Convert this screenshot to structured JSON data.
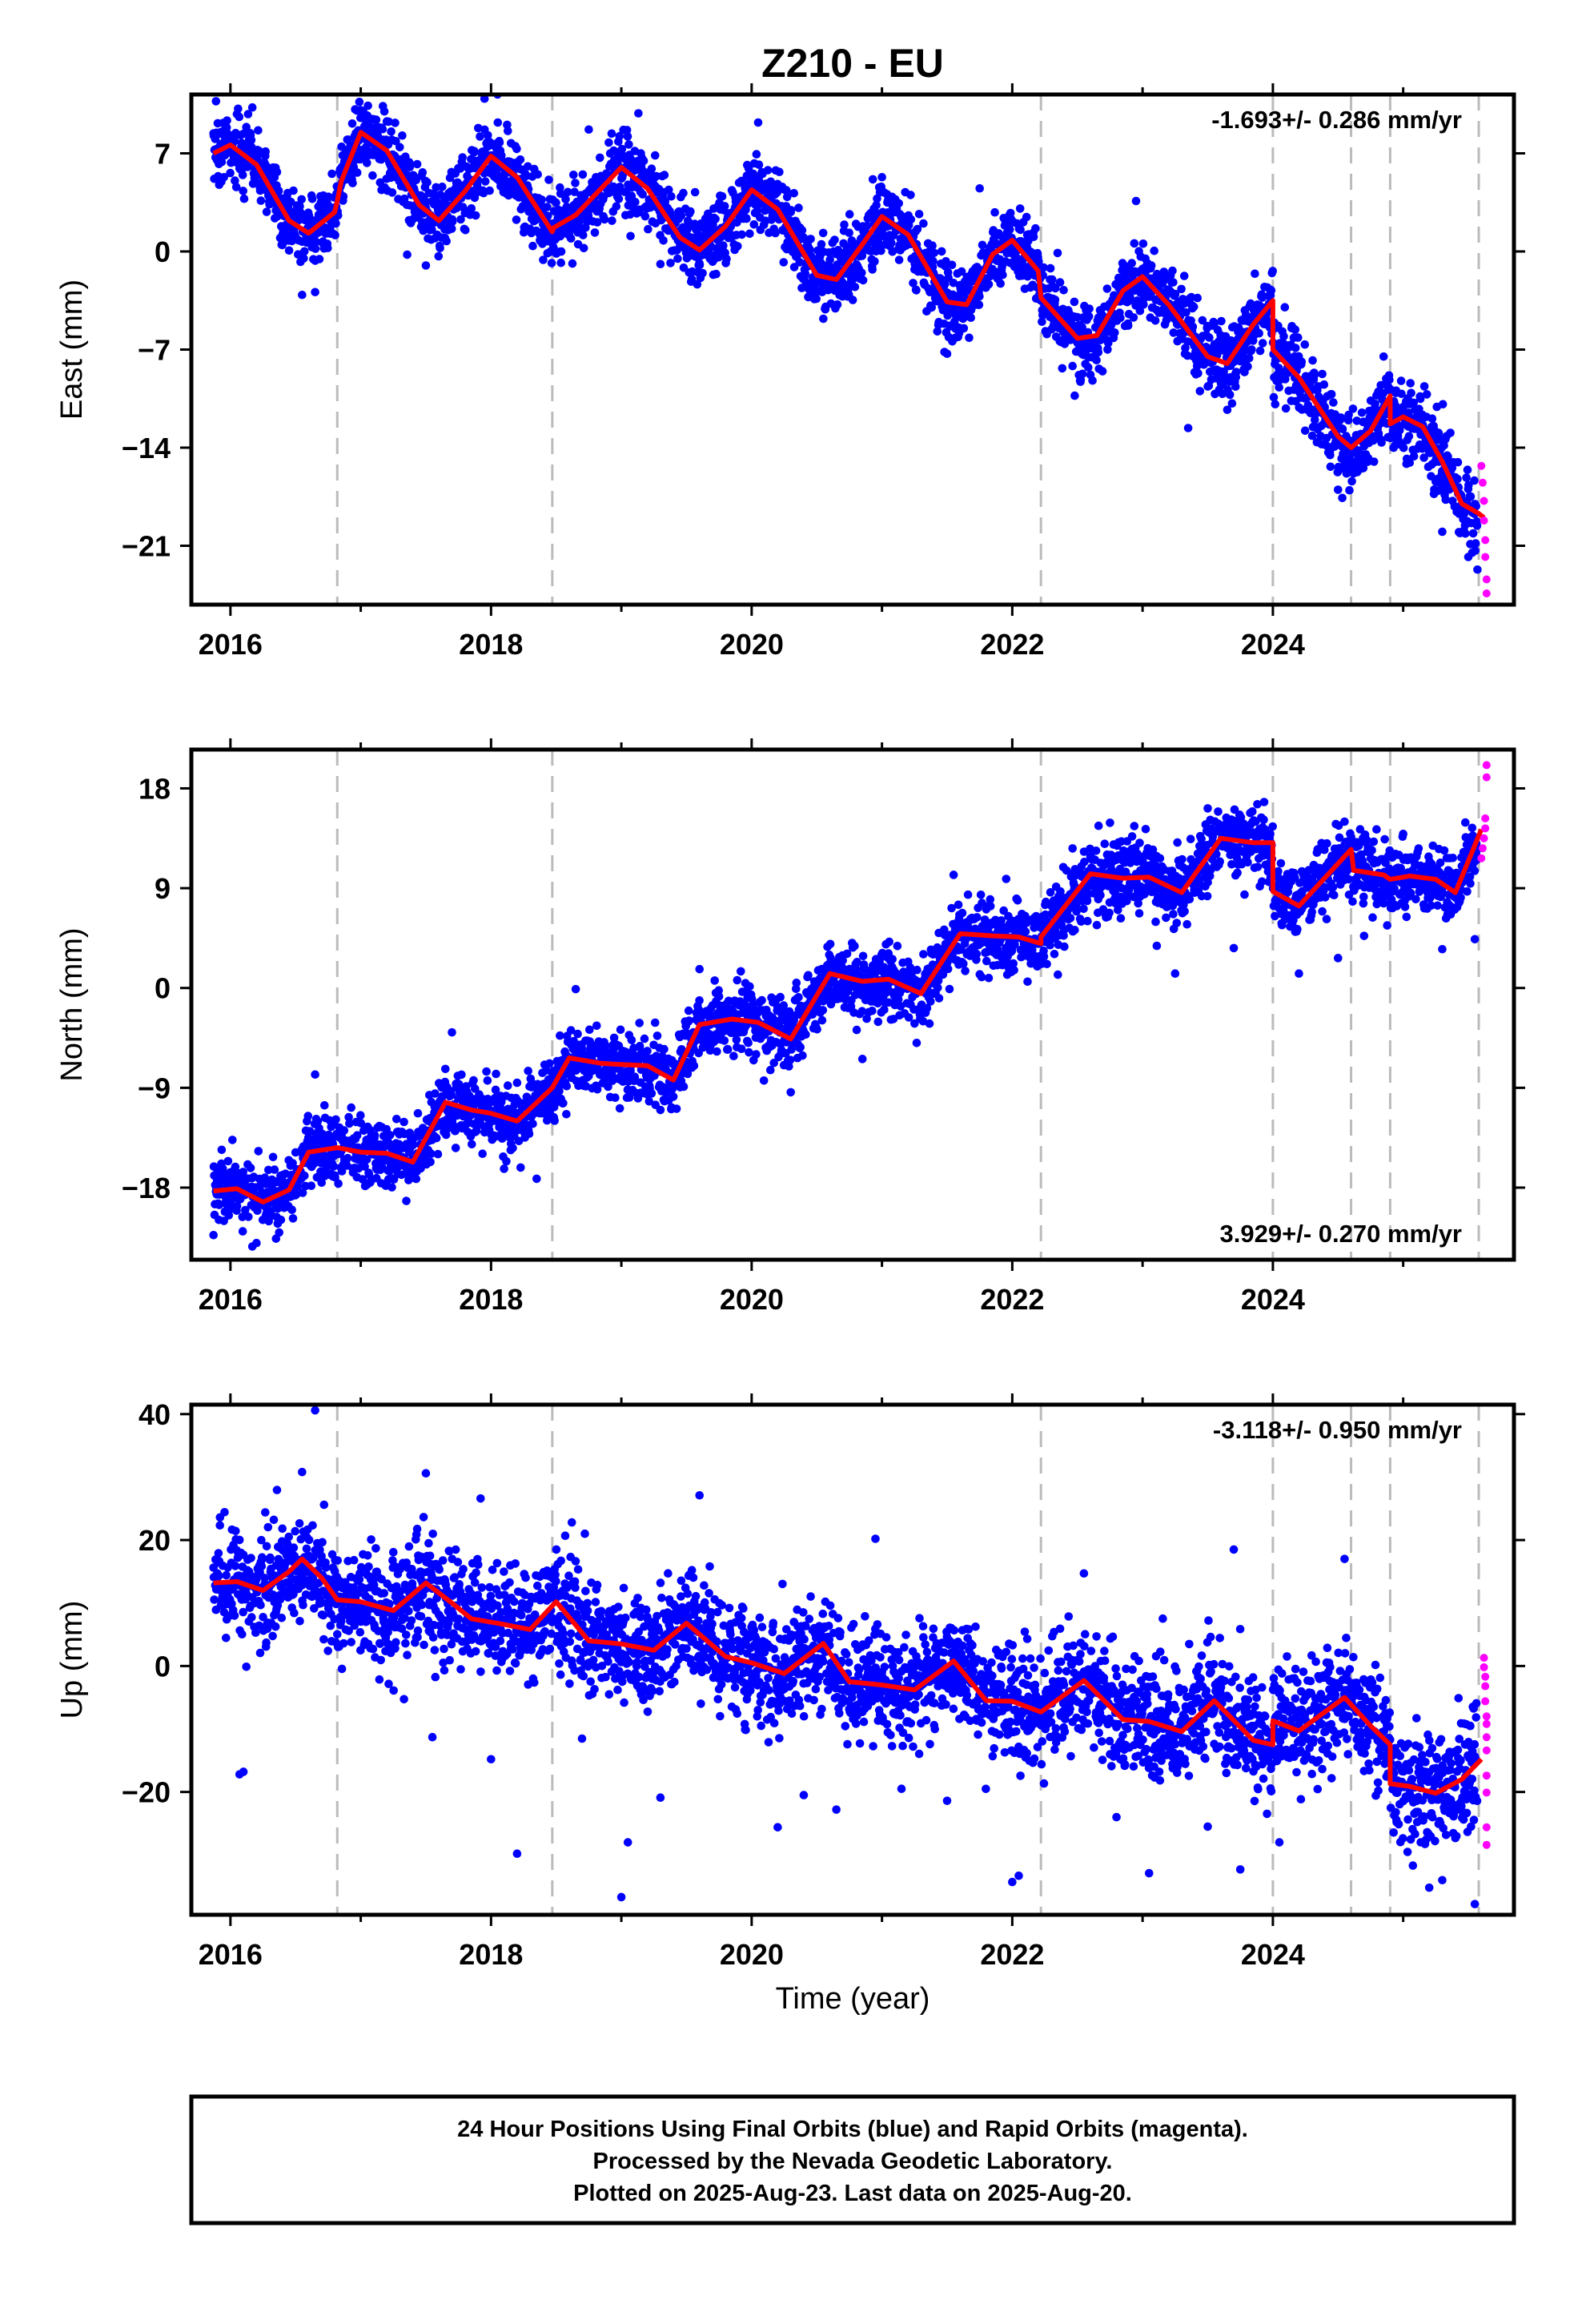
{
  "chart_data": {
    "title": "Z210 - EU",
    "type": "scatter",
    "xlabel": "Time (year)",
    "xlim": [
      2015.7,
      2025.85
    ],
    "x_ticks": [
      2016,
      2018,
      2020,
      2022,
      2024
    ],
    "x_tick_labels": [
      "2016",
      "2018",
      "2020",
      "2022",
      "2024"
    ],
    "colors": {
      "final_orbits": "#0000ff",
      "rapid_orbits": "#ff00ff",
      "model": "#ff0000",
      "offsets": "#bbbbbb",
      "frame": "#000000"
    },
    "offset_epochs": [
      2016.82,
      2018.47,
      2022.22,
      2024.0,
      2024.6,
      2024.9,
      2025.58
    ],
    "data_start": 2015.87,
    "last_final_epoch": 2025.57,
    "last_data_epoch": 2025.64,
    "panels": [
      {
        "id": "east",
        "ylabel": "East (mm)",
        "ylim": [
          -25.2,
          11.2
        ],
        "y_ticks": [
          7,
          0,
          -7,
          -14,
          -21
        ],
        "y_tick_labels": [
          "7",
          "0",
          "−7",
          "−14",
          "−21"
        ],
        "rate": "-1.693+/- 0.286 mm/yr",
        "rate_position": "top-right",
        "noise_sd": 1.3,
        "model_points": [
          [
            2015.87,
            7.0
          ],
          [
            2016.0,
            7.6
          ],
          [
            2016.2,
            6.2
          ],
          [
            2016.45,
            2.2
          ],
          [
            2016.6,
            1.3
          ],
          [
            2016.8,
            2.8
          ],
          [
            2016.82,
            3.6
          ],
          [
            2016.85,
            5.0
          ],
          [
            2017.0,
            8.5
          ],
          [
            2017.2,
            7.2
          ],
          [
            2017.45,
            3.3
          ],
          [
            2017.6,
            2.2
          ],
          [
            2017.8,
            4.3
          ],
          [
            2018.0,
            6.8
          ],
          [
            2018.2,
            5.3
          ],
          [
            2018.47,
            1.4
          ],
          [
            2018.48,
            1.7
          ],
          [
            2018.65,
            2.6
          ],
          [
            2019.0,
            6.0
          ],
          [
            2019.2,
            4.5
          ],
          [
            2019.45,
            1.0
          ],
          [
            2019.6,
            0.1
          ],
          [
            2019.8,
            1.8
          ],
          [
            2020.0,
            4.4
          ],
          [
            2020.2,
            3.0
          ],
          [
            2020.5,
            -1.7
          ],
          [
            2020.65,
            -2.0
          ],
          [
            2020.85,
            0.5
          ],
          [
            2021.0,
            2.5
          ],
          [
            2021.2,
            1.2
          ],
          [
            2021.5,
            -3.6
          ],
          [
            2021.65,
            -3.8
          ],
          [
            2021.85,
            -0.2
          ],
          [
            2022.0,
            0.8
          ],
          [
            2022.2,
            -1.4
          ],
          [
            2022.22,
            -3.3
          ],
          [
            2022.5,
            -6.2
          ],
          [
            2022.65,
            -6.0
          ],
          [
            2022.85,
            -2.8
          ],
          [
            2023.0,
            -1.8
          ],
          [
            2023.2,
            -3.8
          ],
          [
            2023.5,
            -7.5
          ],
          [
            2023.65,
            -8.0
          ],
          [
            2023.85,
            -5.2
          ],
          [
            2024.0,
            -3.5
          ],
          [
            2024.0,
            -7.0
          ],
          [
            2024.2,
            -9.0
          ],
          [
            2024.5,
            -13.2
          ],
          [
            2024.6,
            -14.0
          ],
          [
            2024.75,
            -12.8
          ],
          [
            2024.9,
            -10.3
          ],
          [
            2024.9,
            -12.3
          ],
          [
            2025.0,
            -11.8
          ],
          [
            2025.15,
            -12.5
          ],
          [
            2025.3,
            -15.0
          ],
          [
            2025.45,
            -18.0
          ],
          [
            2025.58,
            -18.7
          ],
          [
            2025.62,
            -19.0
          ]
        ],
        "final_points": [
          [
            2015.95,
            5.3
          ],
          [
            2016.05,
            9.8
          ],
          [
            2016.55,
            -3.1
          ],
          [
            2016.65,
            -2.9
          ],
          [
            2017.05,
            9.7
          ],
          [
            2017.5,
            -1.0
          ],
          [
            2017.95,
            10.9
          ],
          [
            2018.05,
            11.2
          ],
          [
            2018.4,
            -0.6
          ],
          [
            2018.75,
            8.7
          ],
          [
            2019.3,
            -0.9
          ],
          [
            2020.05,
            9.2
          ],
          [
            2020.55,
            -4.8
          ],
          [
            2021.0,
            5.3
          ],
          [
            2021.5,
            -7.3
          ],
          [
            2021.75,
            4.5
          ],
          [
            2022.6,
            -8.8
          ],
          [
            2022.95,
            3.6
          ],
          [
            2023.35,
            -12.6
          ],
          [
            2023.65,
            -11.3
          ],
          [
            2024.1,
            -11.2
          ],
          [
            2024.5,
            -17.0
          ],
          [
            2024.85,
            -7.5
          ],
          [
            2025.3,
            -20.0
          ],
          [
            2025.5,
            -21.8
          ],
          [
            2025.57,
            -22.7
          ]
        ],
        "rapid_points": [
          [
            2025.6,
            -15.3
          ],
          [
            2025.61,
            -16.5
          ],
          [
            2025.62,
            -17.8
          ],
          [
            2025.62,
            -19.2
          ],
          [
            2025.63,
            -20.6
          ],
          [
            2025.63,
            -21.8
          ],
          [
            2025.64,
            -23.4
          ],
          [
            2025.64,
            -24.4
          ]
        ]
      },
      {
        "id": "north",
        "ylabel": "North (mm)",
        "ylim": [
          -24.5,
          21.5
        ],
        "y_ticks": [
          18,
          9,
          0,
          -9,
          -18
        ],
        "y_tick_labels": [
          "18",
          "9",
          "0",
          "−9",
          "−18"
        ],
        "rate": "3.929+/- 0.270 mm/yr",
        "rate_position": "bottom-right",
        "noise_sd": 1.5,
        "model_points": [
          [
            2015.87,
            -18.3
          ],
          [
            2016.05,
            -18.1
          ],
          [
            2016.25,
            -19.3
          ],
          [
            2016.45,
            -18.2
          ],
          [
            2016.6,
            -14.8
          ],
          [
            2016.82,
            -14.4
          ],
          [
            2017.0,
            -14.8
          ],
          [
            2017.2,
            -14.9
          ],
          [
            2017.4,
            -15.7
          ],
          [
            2017.65,
            -10.3
          ],
          [
            2017.85,
            -11.0
          ],
          [
            2018.0,
            -11.3
          ],
          [
            2018.2,
            -12.0
          ],
          [
            2018.47,
            -9.0
          ],
          [
            2018.6,
            -6.3
          ],
          [
            2018.85,
            -6.8
          ],
          [
            2019.0,
            -6.9
          ],
          [
            2019.2,
            -7.0
          ],
          [
            2019.4,
            -8.3
          ],
          [
            2019.6,
            -3.3
          ],
          [
            2019.85,
            -2.8
          ],
          [
            2020.05,
            -3.1
          ],
          [
            2020.3,
            -4.6
          ],
          [
            2020.6,
            1.3
          ],
          [
            2020.85,
            0.6
          ],
          [
            2021.05,
            0.8
          ],
          [
            2021.3,
            -0.5
          ],
          [
            2021.6,
            4.9
          ],
          [
            2021.85,
            4.7
          ],
          [
            2022.05,
            4.6
          ],
          [
            2022.22,
            4.0
          ],
          [
            2022.22,
            4.6
          ],
          [
            2022.6,
            10.3
          ],
          [
            2022.85,
            9.9
          ],
          [
            2023.05,
            10.0
          ],
          [
            2023.3,
            8.6
          ],
          [
            2023.6,
            13.5
          ],
          [
            2023.85,
            13.1
          ],
          [
            2024.0,
            13.1
          ],
          [
            2024.0,
            8.7
          ],
          [
            2024.2,
            7.4
          ],
          [
            2024.6,
            12.5
          ],
          [
            2024.62,
            10.6
          ],
          [
            2024.85,
            10.2
          ],
          [
            2024.9,
            9.8
          ],
          [
            2025.05,
            10.1
          ],
          [
            2025.25,
            9.8
          ],
          [
            2025.4,
            8.6
          ],
          [
            2025.6,
            14.3
          ]
        ],
        "final_points": [
          [
            2015.95,
            -21.0
          ],
          [
            2016.2,
            -23.0
          ],
          [
            2016.35,
            -22.6
          ],
          [
            2016.65,
            -7.8
          ],
          [
            2017.35,
            -19.2
          ],
          [
            2017.7,
            -4.0
          ],
          [
            2018.1,
            -16.3
          ],
          [
            2018.35,
            -17.2
          ],
          [
            2018.65,
            -0.1
          ],
          [
            2019.3,
            -11.0
          ],
          [
            2019.6,
            1.7
          ],
          [
            2020.3,
            -9.4
          ],
          [
            2020.85,
            -6.4
          ],
          [
            2021.25,
            -3.2
          ],
          [
            2021.55,
            10.2
          ],
          [
            2022.35,
            1.2
          ],
          [
            2022.75,
            14.9
          ],
          [
            2023.25,
            1.3
          ],
          [
            2023.5,
            16.2
          ],
          [
            2023.7,
            3.6
          ],
          [
            2024.2,
            1.3
          ],
          [
            2024.5,
            2.7
          ],
          [
            2024.55,
            15.0
          ],
          [
            2024.7,
            4.7
          ],
          [
            2025.0,
            13.9
          ],
          [
            2025.3,
            3.5
          ],
          [
            2025.55,
            4.4
          ]
        ],
        "rapid_points": [
          [
            2025.6,
            11.7
          ],
          [
            2025.61,
            12.6
          ],
          [
            2025.62,
            13.5
          ],
          [
            2025.63,
            14.4
          ],
          [
            2025.63,
            15.3
          ],
          [
            2025.64,
            19.0
          ],
          [
            2025.64,
            20.1
          ]
        ]
      },
      {
        "id": "up",
        "ylabel": "Up (mm)",
        "ylim": [
          -39.5,
          41.5
        ],
        "y_ticks": [
          40,
          20,
          0,
          -20
        ],
        "y_tick_labels": [
          "40",
          "20",
          "0",
          "−20"
        ],
        "rate": "-3.118+/- 0.950 mm/yr",
        "rate_position": "top-right",
        "noise_sd": 4.4,
        "model_points": [
          [
            2015.87,
            13.2
          ],
          [
            2016.05,
            13.4
          ],
          [
            2016.25,
            12.0
          ],
          [
            2016.45,
            15.0
          ],
          [
            2016.55,
            17.0
          ],
          [
            2016.7,
            14.0
          ],
          [
            2016.82,
            10.5
          ],
          [
            2017.0,
            10.2
          ],
          [
            2017.25,
            8.8
          ],
          [
            2017.5,
            13.2
          ],
          [
            2017.7,
            10.0
          ],
          [
            2017.85,
            7.5
          ],
          [
            2018.05,
            6.8
          ],
          [
            2018.3,
            5.8
          ],
          [
            2018.5,
            10.2
          ],
          [
            2018.75,
            4.0
          ],
          [
            2019.0,
            3.5
          ],
          [
            2019.25,
            2.5
          ],
          [
            2019.5,
            6.8
          ],
          [
            2019.8,
            1.5
          ],
          [
            2020.0,
            0.5
          ],
          [
            2020.25,
            -1.2
          ],
          [
            2020.55,
            3.6
          ],
          [
            2020.75,
            -2.5
          ],
          [
            2021.0,
            -3.0
          ],
          [
            2021.25,
            -3.8
          ],
          [
            2021.55,
            0.8
          ],
          [
            2021.8,
            -5.5
          ],
          [
            2022.0,
            -5.6
          ],
          [
            2022.22,
            -7.3
          ],
          [
            2022.55,
            -2.3
          ],
          [
            2022.85,
            -8.5
          ],
          [
            2023.05,
            -8.8
          ],
          [
            2023.3,
            -10.4
          ],
          [
            2023.55,
            -5.5
          ],
          [
            2023.85,
            -11.8
          ],
          [
            2024.0,
            -12.5
          ],
          [
            2024.0,
            -8.7
          ],
          [
            2024.2,
            -10.3
          ],
          [
            2024.55,
            -5.0
          ],
          [
            2024.75,
            -9.5
          ],
          [
            2024.9,
            -12.5
          ],
          [
            2024.9,
            -18.7
          ],
          [
            2025.05,
            -19.1
          ],
          [
            2025.25,
            -20.2
          ],
          [
            2025.45,
            -18.0
          ],
          [
            2025.6,
            -14.8
          ]
        ],
        "final_points": [
          [
            2015.92,
            23.6
          ],
          [
            2016.07,
            -17.2
          ],
          [
            2016.1,
            -16.8
          ],
          [
            2016.55,
            30.8
          ],
          [
            2016.65,
            40.6
          ],
          [
            2017.5,
            30.6
          ],
          [
            2017.55,
            -11.3
          ],
          [
            2017.92,
            26.6
          ],
          [
            2018.0,
            -14.8
          ],
          [
            2018.2,
            -29.8
          ],
          [
            2018.62,
            22.8
          ],
          [
            2018.72,
            21.0
          ],
          [
            2019.0,
            -36.7
          ],
          [
            2019.05,
            -28.0
          ],
          [
            2019.3,
            -20.9
          ],
          [
            2019.6,
            27.1
          ],
          [
            2019.95,
            -10.1
          ],
          [
            2020.2,
            -25.6
          ],
          [
            2020.4,
            -20.5
          ],
          [
            2020.65,
            -22.8
          ],
          [
            2020.95,
            20.2
          ],
          [
            2021.15,
            -19.5
          ],
          [
            2021.5,
            -21.4
          ],
          [
            2022.0,
            -34.3
          ],
          [
            2022.05,
            -33.3
          ],
          [
            2022.55,
            14.7
          ],
          [
            2022.8,
            -24.0
          ],
          [
            2023.05,
            -32.9
          ],
          [
            2023.5,
            -25.5
          ],
          [
            2023.7,
            18.5
          ],
          [
            2023.75,
            -32.3
          ],
          [
            2024.05,
            -28.0
          ],
          [
            2024.55,
            17.0
          ],
          [
            2024.95,
            -24.8
          ],
          [
            2025.2,
            -35.2
          ],
          [
            2025.3,
            -34.0
          ],
          [
            2025.55,
            -37.8
          ]
        ],
        "rapid_points": [
          [
            2025.62,
            1.3
          ],
          [
            2025.62,
            -0.2
          ],
          [
            2025.63,
            -1.7
          ],
          [
            2025.63,
            -3.2
          ],
          [
            2025.63,
            -5.6
          ],
          [
            2025.64,
            -8.0
          ],
          [
            2025.64,
            -9.2
          ],
          [
            2025.64,
            -11.3
          ],
          [
            2025.64,
            -13.4
          ],
          [
            2025.64,
            -17.4
          ],
          [
            2025.64,
            -20.1
          ],
          [
            2025.64,
            -25.6
          ],
          [
            2025.64,
            -28.4
          ]
        ]
      }
    ]
  },
  "footer": {
    "line1": "24 Hour Positions Using Final Orbits (blue) and Rapid Orbits (magenta).",
    "line2": "Processed by the Nevada Geodetic Laboratory.",
    "line3": "Plotted on 2025-Aug-23. Last data on 2025-Aug-20."
  }
}
